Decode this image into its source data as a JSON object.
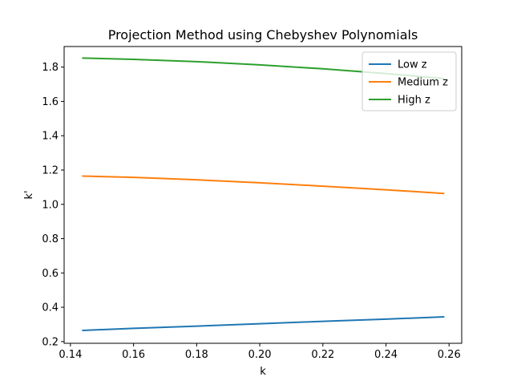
{
  "chart_data": {
    "type": "line",
    "title": "Projection Method using Chebyshev Polynomials",
    "xlabel": "k",
    "ylabel": "k'",
    "xlim": [
      0.138,
      0.264
    ],
    "ylim": [
      0.19,
      1.92
    ],
    "x_ticks": [
      0.14,
      0.16,
      0.18,
      0.2,
      0.22,
      0.24,
      0.26
    ],
    "x_tick_labels": [
      "0.14",
      "0.16",
      "0.18",
      "0.20",
      "0.22",
      "0.24",
      "0.26"
    ],
    "y_ticks": [
      0.2,
      0.4,
      0.6,
      0.8,
      1.0,
      1.2,
      1.4,
      1.6,
      1.8
    ],
    "y_tick_labels": [
      "0.2",
      "0.4",
      "0.6",
      "0.8",
      "1.0",
      "1.2",
      "1.4",
      "1.6",
      "1.8"
    ],
    "grid": false,
    "legend_position": "top-right",
    "series": [
      {
        "name": "Low z",
        "color": "#1f77b4",
        "x": [
          0.1437,
          0.16,
          0.18,
          0.2,
          0.22,
          0.24,
          0.2585
        ],
        "y": [
          0.265,
          0.277,
          0.29,
          0.304,
          0.318,
          0.331,
          0.344
        ]
      },
      {
        "name": "Medium z",
        "color": "#ff7f0e",
        "x": [
          0.1437,
          0.16,
          0.18,
          0.2,
          0.22,
          0.24,
          0.2585
        ],
        "y": [
          1.165,
          1.157,
          1.143,
          1.126,
          1.106,
          1.085,
          1.063
        ]
      },
      {
        "name": "High z",
        "color": "#2ca02c",
        "x": [
          0.1437,
          0.16,
          0.18,
          0.2,
          0.22,
          0.24,
          0.2585
        ],
        "y": [
          1.853,
          1.845,
          1.832,
          1.813,
          1.79,
          1.762,
          1.733
        ]
      }
    ]
  }
}
